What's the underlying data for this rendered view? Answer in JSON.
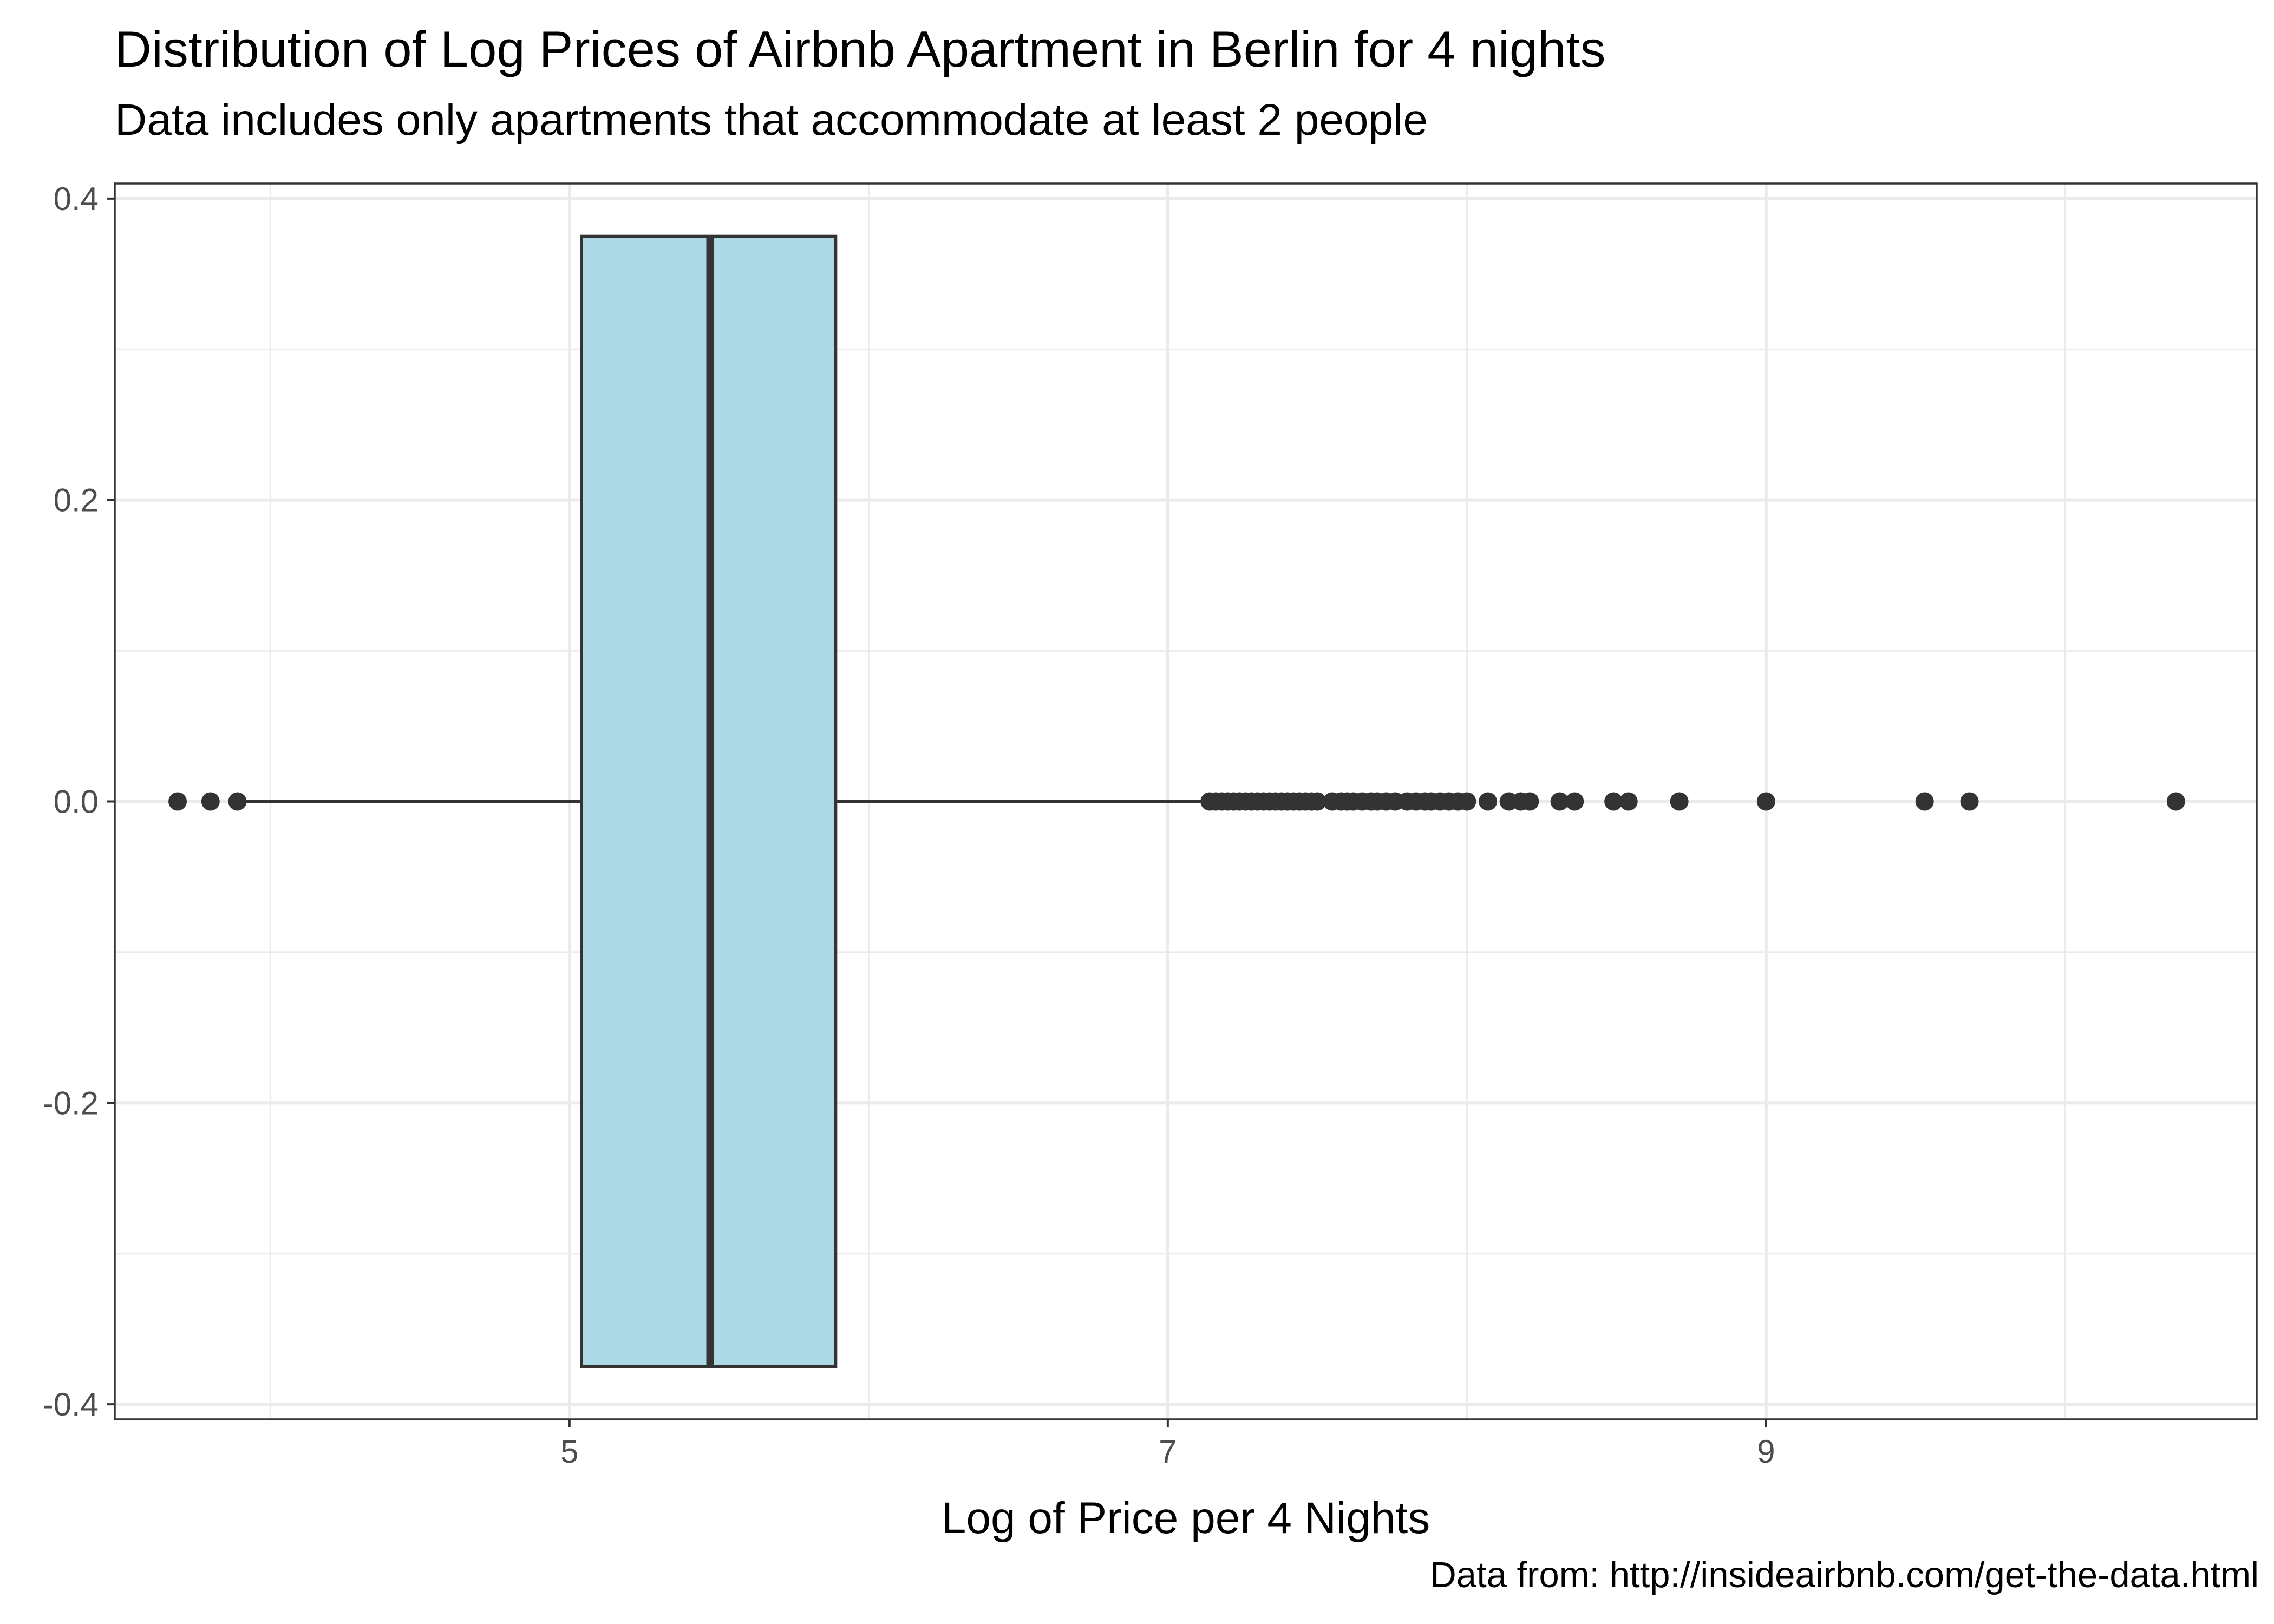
{
  "chart_data": {
    "type": "box",
    "title": "Distribution of Log Prices of Airbnb Apartment in Berlin for 4 nights",
    "subtitle": "Data includes only apartments that accommodate at least 2 people",
    "caption": "Data from: http://insideairbnb.com/get-the-data.html",
    "xlabel": "Log of Price per 4 Nights",
    "ylabel": "",
    "xlim": [
      3.48,
      10.64
    ],
    "ylim": [
      -0.41,
      0.41
    ],
    "x_ticks": [
      5,
      7,
      9
    ],
    "x_tick_labels": [
      "5",
      "7",
      "9"
    ],
    "x_minor_ticks": [
      4,
      6,
      8,
      10
    ],
    "y_ticks": [
      -0.4,
      -0.2,
      0.0,
      0.2,
      0.4
    ],
    "y_tick_labels": [
      "-0.4",
      "-0.2",
      "0.0",
      "0.2",
      "0.4"
    ],
    "y_minor_ticks": [
      -0.3,
      -0.1,
      0.1,
      0.3
    ],
    "grid": true,
    "colors": {
      "box_fill": "#add8e6",
      "box_line": "#333333",
      "points": "#333333",
      "grid": "#ebebeb",
      "panel_border": "#333333"
    },
    "box": {
      "y_center": 0.0,
      "half_width": 0.375,
      "whisker_low": 3.88,
      "q1": 5.04,
      "median": 5.47,
      "q3": 5.89,
      "whisker_high": 7.12
    },
    "outliers": [
      3.69,
      3.8,
      3.89,
      7.14,
      7.16,
      7.18,
      7.2,
      7.22,
      7.24,
      7.26,
      7.28,
      7.3,
      7.32,
      7.34,
      7.36,
      7.38,
      7.4,
      7.42,
      7.44,
      7.46,
      7.48,
      7.5,
      7.55,
      7.58,
      7.6,
      7.62,
      7.65,
      7.68,
      7.7,
      7.73,
      7.76,
      7.8,
      7.83,
      7.86,
      7.88,
      7.91,
      7.94,
      7.97,
      8.0,
      8.07,
      8.14,
      8.18,
      8.21,
      8.31,
      8.36,
      8.49,
      8.54,
      8.71,
      9.0,
      9.53,
      9.68,
      10.37
    ]
  }
}
